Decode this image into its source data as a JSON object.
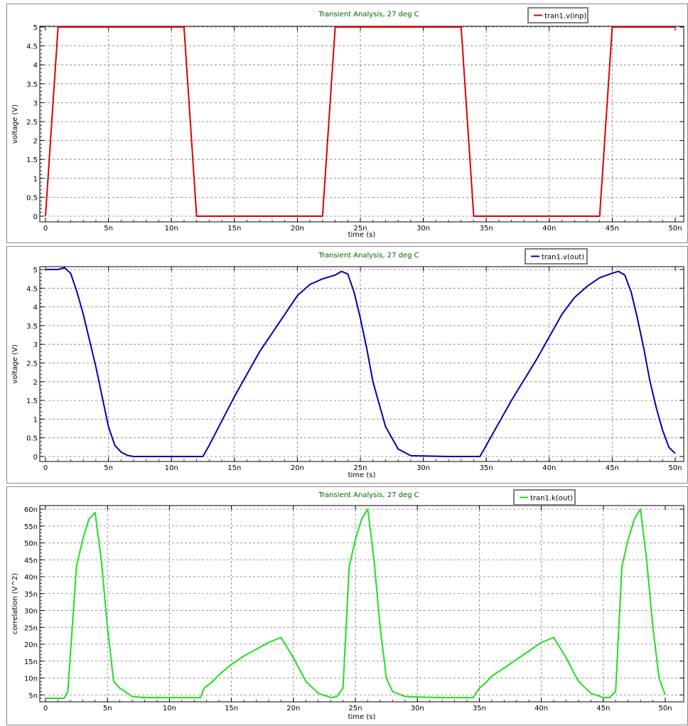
{
  "chart_data": [
    {
      "type": "line",
      "title": "Transient Analysis, 27 deg C",
      "xlabel": "time (s)",
      "ylabel": "voltage (V)",
      "xlim": [
        0,
        50
      ],
      "ylim": [
        0,
        5
      ],
      "x_unit": "ns",
      "xticks": [
        "0",
        "5n",
        "10n",
        "15n",
        "20n",
        "25n",
        "30n",
        "35n",
        "40n",
        "45n",
        "50n"
      ],
      "yticks": [
        "0",
        "0.5",
        "1",
        "1.5",
        "2",
        "2.5",
        "3",
        "3.5",
        "4",
        "4.5",
        "5"
      ],
      "grid": true,
      "legend": "top-right",
      "series": [
        {
          "name": "tran1.v(inp)",
          "color": "#dd0000",
          "x": [
            0,
            1,
            11,
            12,
            22,
            23,
            33,
            34,
            44,
            45,
            50
          ],
          "y": [
            0,
            5,
            5,
            0,
            0,
            5,
            5,
            0,
            0,
            5,
            5
          ]
        }
      ]
    },
    {
      "type": "line",
      "title": "Transient Analysis, 27 deg C",
      "xlabel": "time (s)",
      "ylabel": "voltage (V)",
      "xlim": [
        0,
        50
      ],
      "ylim": [
        0,
        5
      ],
      "x_unit": "ns",
      "xticks": [
        "0",
        "5n",
        "10n",
        "15n",
        "20n",
        "25n",
        "30n",
        "35n",
        "40n",
        "45n",
        "50n"
      ],
      "yticks": [
        "0",
        "0.5",
        "1",
        "1.5",
        "2",
        "2.5",
        "3",
        "3.5",
        "4",
        "4.5",
        "5"
      ],
      "grid": true,
      "legend": "top-right",
      "series": [
        {
          "name": "tran1.v(out)",
          "color": "#0000b0",
          "x": [
            0,
            1,
            1.5,
            2,
            2.5,
            3,
            3.5,
            4,
            4.5,
            5,
            5.5,
            6,
            6.5,
            7,
            10,
            12.5,
            13,
            15,
            17,
            19,
            20,
            21,
            22,
            23,
            23.5,
            24,
            24.5,
            25,
            25.5,
            26,
            27,
            28,
            29,
            32,
            34.5,
            35,
            37,
            39,
            40,
            41,
            42,
            43,
            44,
            45,
            45.5,
            46,
            46.5,
            47,
            47.5,
            48,
            48.5,
            49,
            49.5,
            50
          ],
          "y": [
            5,
            5,
            5.05,
            4.9,
            4.4,
            3.8,
            3.1,
            2.4,
            1.6,
            0.8,
            0.3,
            0.12,
            0.03,
            0,
            0,
            0,
            0.3,
            1.6,
            2.8,
            3.8,
            4.3,
            4.6,
            4.75,
            4.85,
            4.95,
            4.88,
            4.4,
            3.7,
            2.9,
            2.0,
            0.8,
            0.2,
            0.02,
            0,
            0,
            0.3,
            1.5,
            2.6,
            3.2,
            3.8,
            4.25,
            4.55,
            4.78,
            4.9,
            4.95,
            4.85,
            4.4,
            3.7,
            2.9,
            2.0,
            1.3,
            0.7,
            0.25,
            0.08
          ]
        }
      ]
    },
    {
      "type": "line",
      "title": "Transient Analysis, 27 deg C",
      "xlabel": "time (s)",
      "ylabel": "correlation (V^2)",
      "xlim": [
        0,
        50
      ],
      "ylim": [
        4,
        60
      ],
      "x_unit": "ns",
      "y_unit": "n",
      "xticks": [
        "0",
        "5n",
        "10n",
        "15n",
        "20n",
        "25n",
        "30n",
        "35n",
        "40n",
        "45n",
        "50n"
      ],
      "yticks": [
        "5n",
        "10n",
        "15n",
        "20n",
        "25n",
        "30n",
        "35n",
        "40n",
        "45n",
        "50n",
        "55n",
        "60n"
      ],
      "grid": true,
      "legend": "top-right",
      "series": [
        {
          "name": "tran1.k(out)",
          "color": "#22dd22",
          "x": [
            0,
            1.5,
            1.8,
            2.5,
            3,
            3.5,
            4,
            4.5,
            5,
            5.5,
            6,
            7,
            8,
            10,
            12.5,
            12.8,
            13.5,
            14,
            15,
            16,
            17,
            18,
            19,
            20,
            21,
            22,
            23,
            23.5,
            24,
            24.5,
            25,
            25.5,
            26,
            26.5,
            27,
            27.5,
            28,
            29,
            32,
            34.5,
            35,
            35.5,
            36,
            37,
            38,
            39,
            40,
            41,
            42,
            43,
            44,
            45,
            45.5,
            46,
            46.5,
            47,
            47.5,
            48,
            48.5,
            49,
            49.5,
            50
          ],
          "y": [
            4,
            4,
            6,
            43,
            51,
            57,
            59,
            45,
            25,
            9,
            7,
            4.5,
            4.2,
            4.2,
            4.2,
            7,
            9,
            11,
            14,
            16.5,
            18.5,
            20.5,
            22,
            16,
            9,
            5.5,
            4.2,
            4.5,
            7,
            43,
            51,
            57,
            60,
            45,
            25,
            10,
            6,
            4.5,
            4.2,
            4.2,
            7,
            8.5,
            10.5,
            13,
            15.5,
            18,
            20.5,
            22,
            16,
            9,
            5.5,
            4.2,
            4.2,
            6,
            43,
            51,
            57,
            60,
            45,
            25,
            10,
            5
          ]
        }
      ]
    }
  ]
}
